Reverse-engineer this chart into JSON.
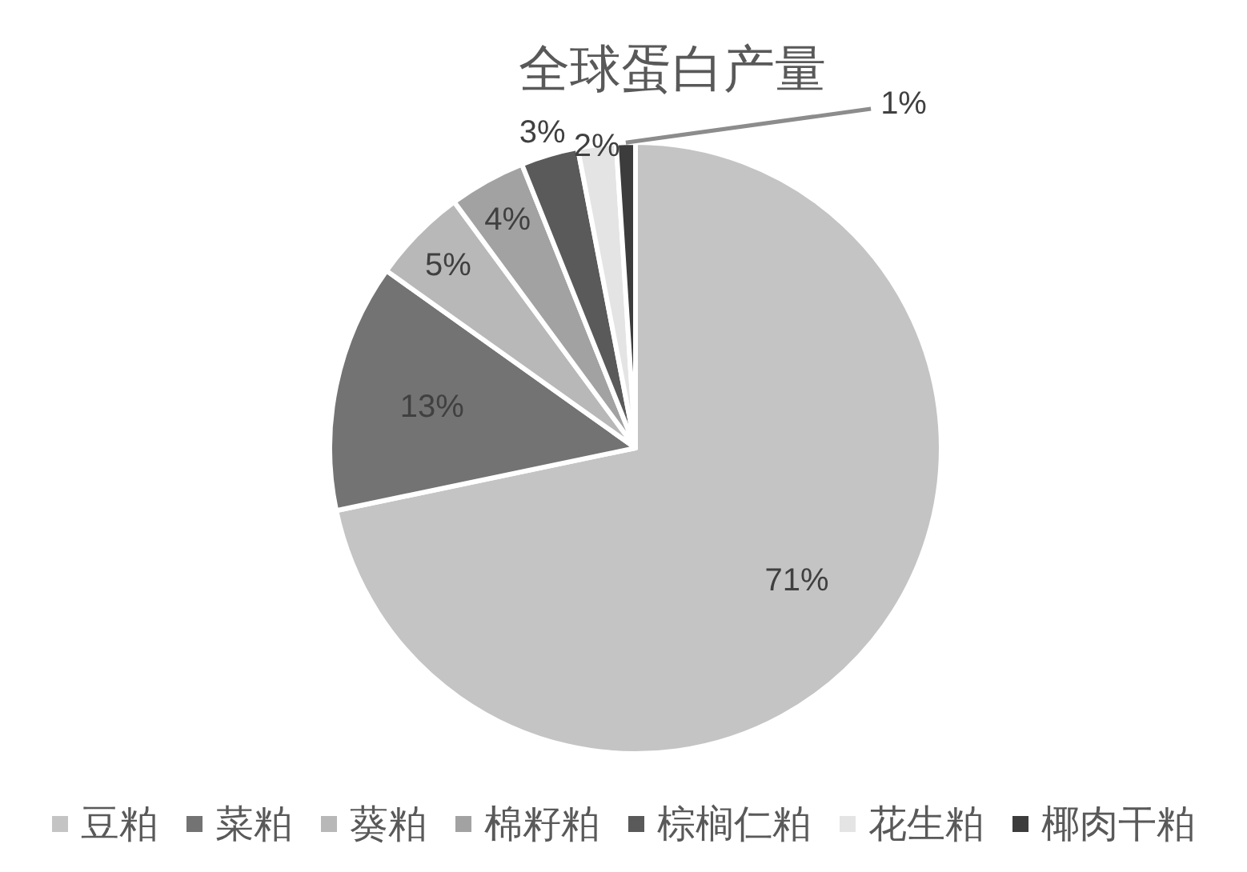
{
  "chart_data": {
    "type": "pie",
    "title": "全球蛋白产量",
    "categories": [
      "豆粕",
      "菜粕",
      "葵粕",
      "棉籽粕",
      "棕榈仁粕",
      "花生粕",
      "椰肉干粕"
    ],
    "values": [
      71,
      13,
      5,
      4,
      3,
      2,
      1
    ],
    "colors": [
      "#c4c4c4",
      "#737373",
      "#b8b8b8",
      "#a2a2a2",
      "#5a5a5a",
      "#e4e4e4",
      "#3c3c3c"
    ],
    "value_labels": [
      "71%",
      "13%",
      "5%",
      "4%",
      "3%",
      "2%",
      "1%"
    ],
    "legend": "bottom"
  }
}
